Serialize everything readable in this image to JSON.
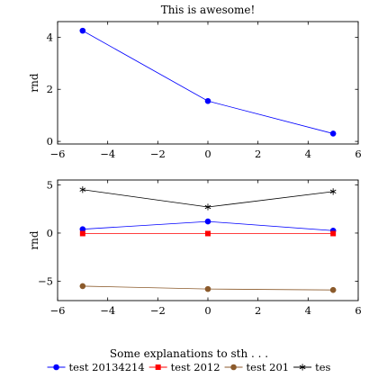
{
  "chart_data": [
    {
      "type": "line",
      "title": "This is awesome!",
      "xlabel": "",
      "ylabel": "rnd",
      "xlim": [
        -6,
        6
      ],
      "ylim": [
        -0.1,
        4.6
      ],
      "xticks": [
        -6,
        -4,
        -2,
        0,
        2,
        4,
        6
      ],
      "yticks": [
        0,
        2,
        4
      ],
      "xtick_labels": [
        "−6",
        "−4",
        "−2",
        "0",
        "2",
        "4",
        "6"
      ],
      "ytick_labels": [
        "0",
        "2",
        "4"
      ],
      "series": [
        {
          "color": "#0000ff",
          "marker": "circle",
          "x": [
            -5,
            0,
            5
          ],
          "y": [
            4.25,
            1.55,
            0.3
          ]
        }
      ]
    },
    {
      "type": "line",
      "title": "",
      "xlabel": "",
      "ylabel": "rnd",
      "xlim": [
        -6,
        6
      ],
      "ylim": [
        -7,
        5.5
      ],
      "xticks": [
        -6,
        -4,
        -2,
        0,
        2,
        4,
        6
      ],
      "yticks": [
        -5,
        0,
        5
      ],
      "xtick_labels": [
        "−6",
        "−4",
        "−2",
        "0",
        "2",
        "4",
        "6"
      ],
      "ytick_labels": [
        "−5",
        "0",
        "5"
      ],
      "series": [
        {
          "name": "test 20134214",
          "color": "#0000ff",
          "marker": "circle",
          "x": [
            -5,
            0,
            5
          ],
          "y": [
            0.4,
            1.2,
            0.25
          ]
        },
        {
          "name": "test 2012",
          "color": "#ff0000",
          "marker": "square",
          "x": [
            -5,
            0,
            5
          ],
          "y": [
            -0.05,
            -0.05,
            -0.05
          ]
        },
        {
          "name": "test 201",
          "color": "#8b5a2b",
          "marker": "circle",
          "x": [
            -5,
            0,
            5
          ],
          "y": [
            -5.5,
            -5.8,
            -5.9
          ]
        },
        {
          "name": "tes",
          "color": "#000000",
          "marker": "star",
          "x": [
            -5,
            0,
            5
          ],
          "y": [
            4.5,
            2.7,
            4.3
          ]
        }
      ]
    }
  ],
  "legend": {
    "caption": "Some explanations to sth . . .",
    "placement": "bottom-center"
  }
}
